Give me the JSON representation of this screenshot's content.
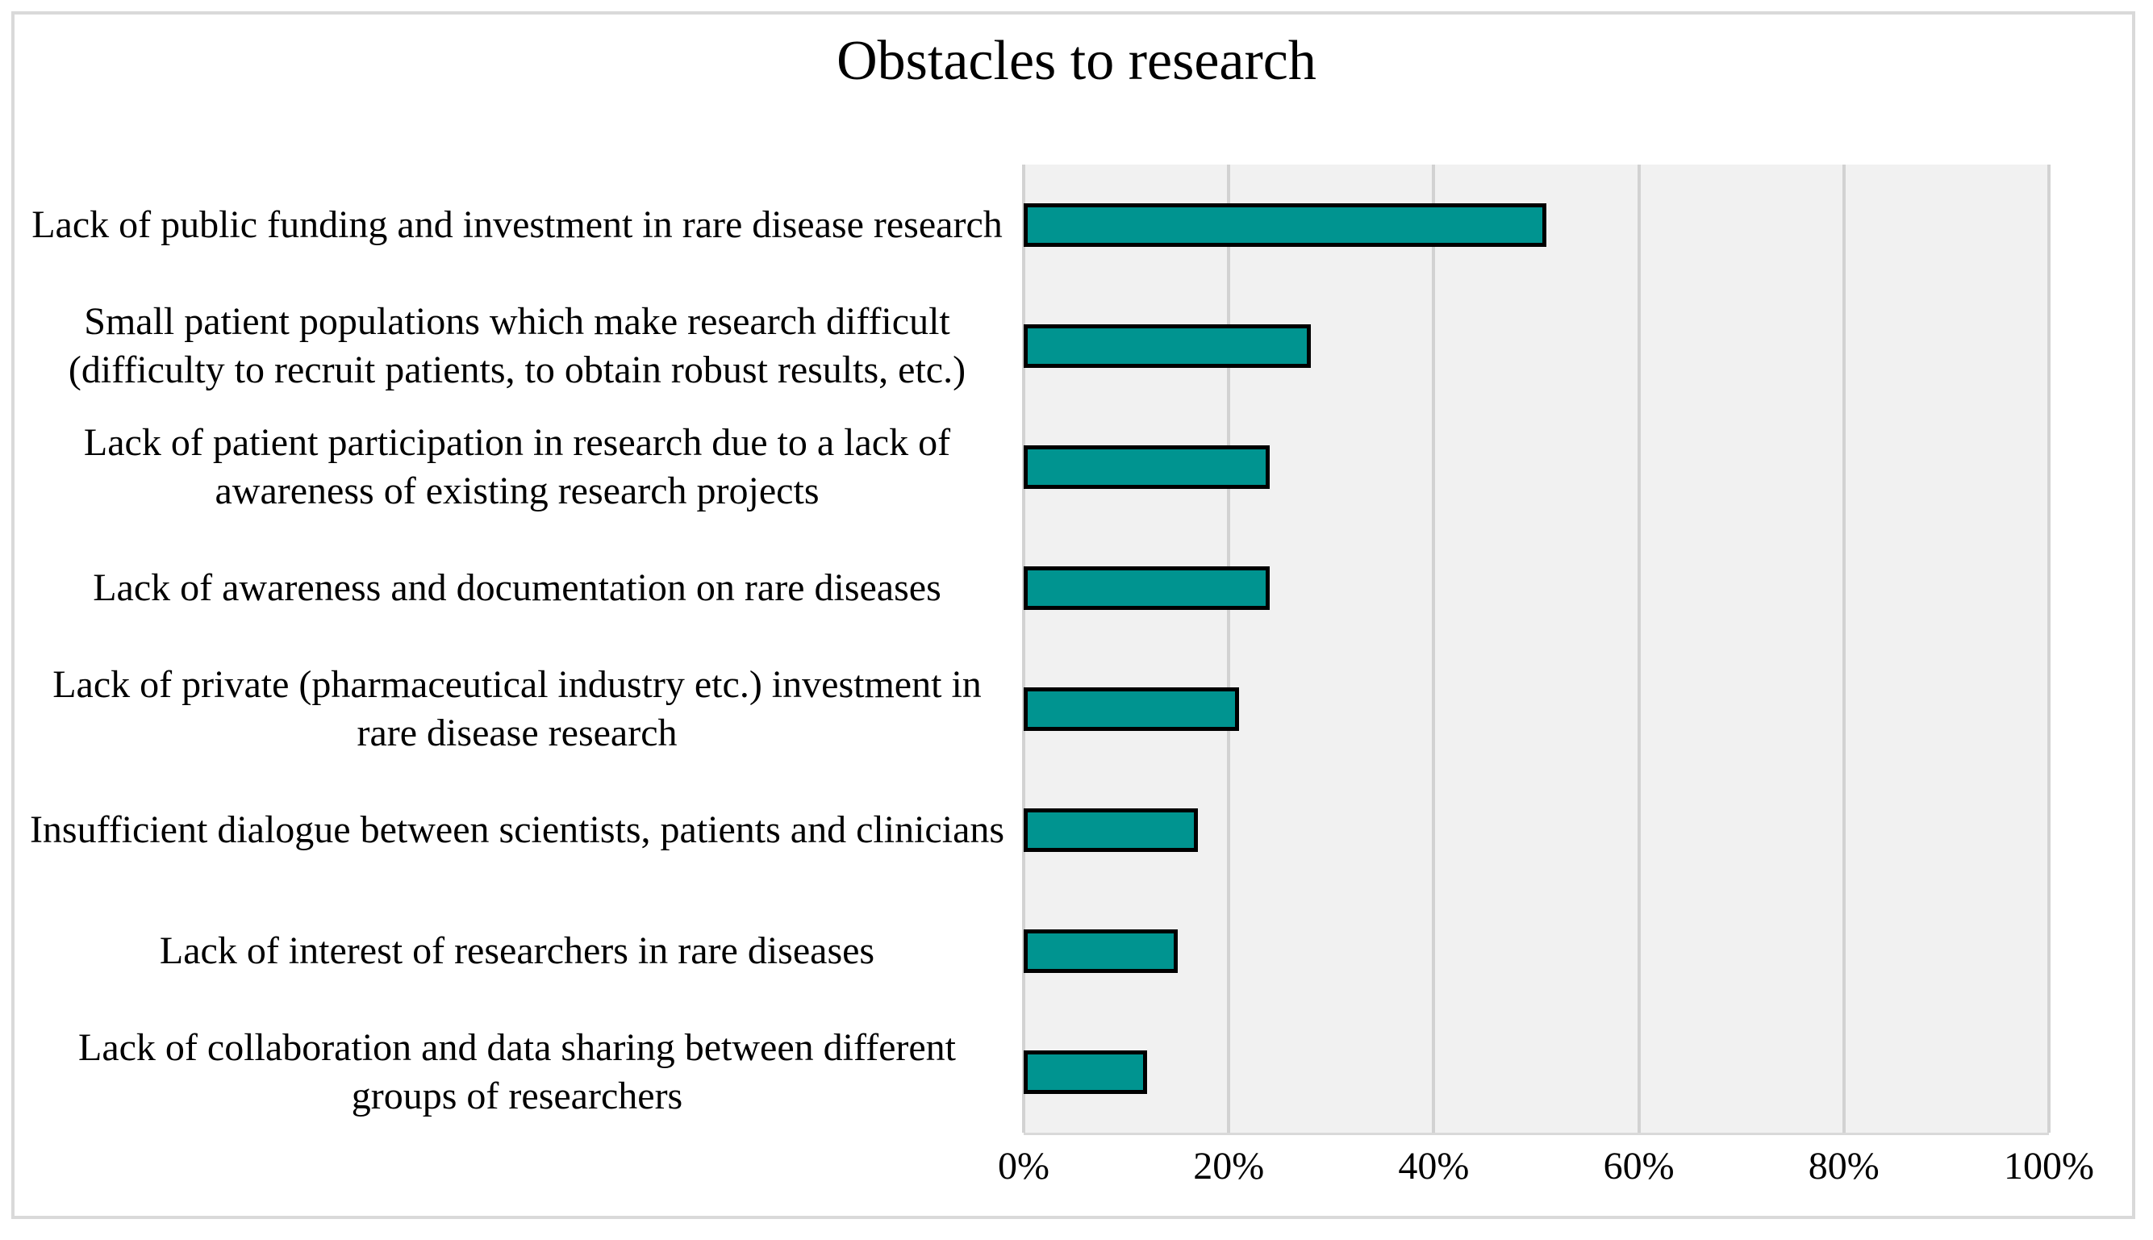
{
  "title": "Obstacles to research",
  "chart_data": {
    "type": "bar",
    "orientation": "horizontal",
    "title": "Obstacles to research",
    "categories": [
      "Lack of public funding and investment in rare disease research",
      "Small patient populations which make research difficult (difficulty to recruit patients, to obtain robust results, etc.)",
      "Lack of patient participation in research due to a lack of awareness of existing research projects",
      "Lack of awareness and documentation on rare diseases",
      "Lack of private (pharmaceutical industry etc.) investment in rare disease research",
      "Insufficient dialogue between scientists, patients and clinicians",
      "Lack of interest of researchers in rare diseases",
      "Lack of collaboration and data sharing between different groups of researchers"
    ],
    "values": [
      51,
      28,
      24,
      24,
      21,
      17,
      15,
      12
    ],
    "unit": "%",
    "xlabel": "",
    "ylabel": "",
    "xlim": [
      0,
      100
    ],
    "x_ticks": [
      0,
      20,
      40,
      60,
      80,
      100
    ],
    "x_tick_labels": [
      "0%",
      "20%",
      "40%",
      "60%",
      "80%",
      "100%"
    ],
    "grid": "vertical-only",
    "legend": false,
    "colors": {
      "bar_fill": "#009490",
      "bar_border": "#000000",
      "plot_background": "#f1f1f1",
      "gridline": "#d2d2d2",
      "chart_border": "#d9d9d9",
      "text": "#000000"
    }
  }
}
